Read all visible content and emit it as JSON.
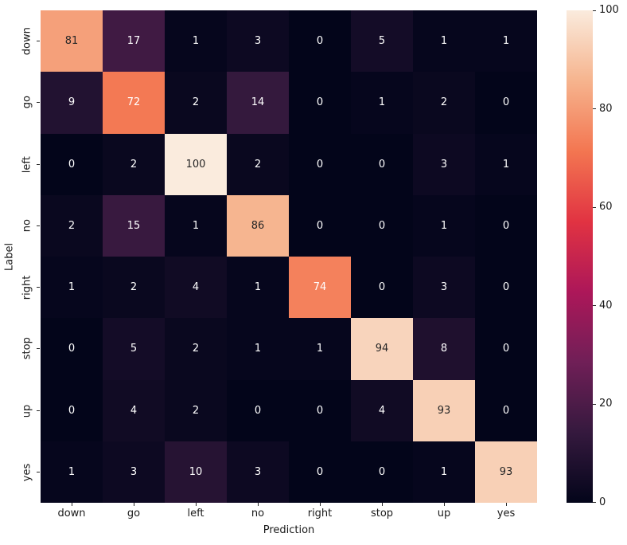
{
  "chart_data": {
    "type": "heatmap",
    "title": "",
    "xlabel": "Prediction",
    "ylabel": "Label",
    "x_categories": [
      "down",
      "go",
      "left",
      "no",
      "right",
      "stop",
      "up",
      "yes"
    ],
    "y_categories": [
      "down",
      "go",
      "left",
      "no",
      "right",
      "stop",
      "up",
      "yes"
    ],
    "values": [
      [
        81,
        17,
        1,
        3,
        0,
        5,
        1,
        1
      ],
      [
        9,
        72,
        2,
        14,
        0,
        1,
        2,
        0
      ],
      [
        0,
        2,
        100,
        2,
        0,
        0,
        3,
        1
      ],
      [
        2,
        15,
        1,
        86,
        0,
        0,
        1,
        0
      ],
      [
        1,
        2,
        4,
        1,
        74,
        0,
        3,
        0
      ],
      [
        0,
        5,
        2,
        1,
        1,
        94,
        8,
        0
      ],
      [
        0,
        4,
        2,
        0,
        0,
        4,
        93,
        0
      ],
      [
        1,
        3,
        10,
        3,
        0,
        0,
        1,
        93
      ]
    ],
    "vmin": 0,
    "vmax": 100,
    "colorbar_ticks": [
      0,
      20,
      40,
      60,
      80,
      100
    ],
    "colormap_name": "rocket",
    "colormap_stops": [
      [
        0.0,
        "#03051A"
      ],
      [
        0.143,
        "#35193E"
      ],
      [
        0.286,
        "#701F57"
      ],
      [
        0.429,
        "#AD1759"
      ],
      [
        0.571,
        "#E13342"
      ],
      [
        0.714,
        "#F37651"
      ],
      [
        0.857,
        "#F6B48E"
      ],
      [
        1.0,
        "#FAEBDD"
      ]
    ],
    "annot_color_on_light": "#262626",
    "annot_color_on_dark": "#FFFFFF",
    "legend_position": "right",
    "grid": false
  }
}
